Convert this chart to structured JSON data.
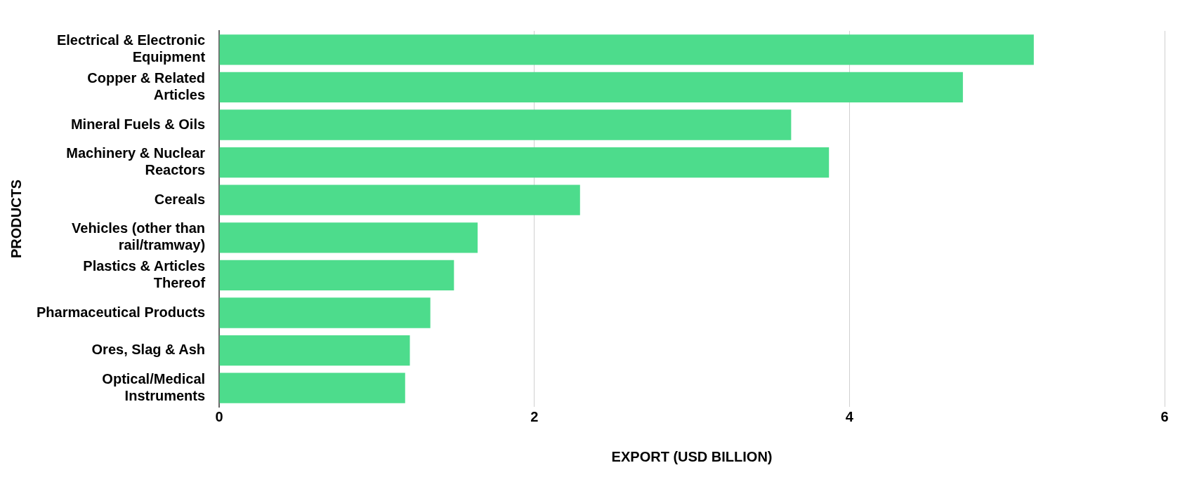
{
  "chart_data": {
    "type": "bar",
    "orientation": "horizontal",
    "xlabel": "EXPORT (USD BILLION)",
    "ylabel": "PRODUCTS",
    "categories": [
      "Electrical & Electronic Equipment",
      "Copper & Related Articles",
      "Mineral Fuels & Oils",
      "Machinery & Nuclear Reactors",
      "Cereals",
      "Vehicles (other than rail/tramway)",
      "Plastics & Articles Thereof",
      "Pharmaceutical Products",
      "Ores, Slag & Ash",
      "Optical/Medical Instruments"
    ],
    "values": [
      5.17,
      4.72,
      3.63,
      3.87,
      2.29,
      1.64,
      1.49,
      1.34,
      1.21,
      1.18
    ],
    "color": "#4ddc8c",
    "xlim": [
      0,
      6
    ],
    "xticks": [
      0,
      2,
      4,
      6
    ],
    "grid": "x",
    "legend": false
  }
}
